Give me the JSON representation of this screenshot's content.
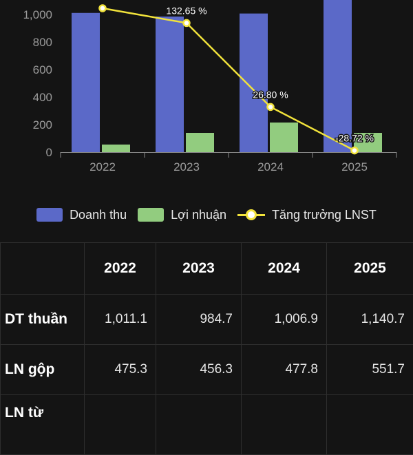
{
  "chart_data": {
    "type": "bar",
    "categories": [
      "2022",
      "2023",
      "2024",
      "2025"
    ],
    "series": [
      {
        "name": "Doanh thu",
        "type": "bar",
        "color": "#5b69c8",
        "values": [
          1011.1,
          984.7,
          1006.9,
          1140.7
        ]
      },
      {
        "name": "Lợi nhuận",
        "type": "bar",
        "color": "#92cc7f",
        "values": [
          55,
          140,
          215,
          140
        ]
      },
      {
        "name": "Tăng trưởng LNST",
        "type": "line",
        "color": "#f2e33b",
        "values": [
          1045,
          938,
          328,
          12
        ],
        "labels": [
          "",
          "132.65 %",
          "26.80 %",
          "-28.72 %"
        ]
      }
    ],
    "y_ticks": [
      "0",
      "200",
      "400",
      "600",
      "800",
      "1,000"
    ],
    "ylim": [
      0,
      1100
    ],
    "grid": false,
    "legend": "bottom"
  },
  "legend": {
    "items": [
      {
        "label": "Doanh thu",
        "color": "#5b69c8"
      },
      {
        "label": "Lợi nhuận",
        "color": "#92cc7f"
      },
      {
        "label": "Tăng trưởng LNST",
        "color": "#f2e33b"
      }
    ]
  },
  "table": {
    "headers": [
      "",
      "2022",
      "2023",
      "2024",
      "2025"
    ],
    "rows": [
      {
        "label": "DT thuần",
        "values": [
          "1,011.1",
          "984.7",
          "1,006.9",
          "1,140.7"
        ]
      },
      {
        "label": "LN gộp",
        "values": [
          "475.3",
          "456.3",
          "477.8",
          "551.7"
        ]
      },
      {
        "label": "LN từ",
        "values": [
          "",
          "",
          "",
          ""
        ]
      }
    ]
  }
}
